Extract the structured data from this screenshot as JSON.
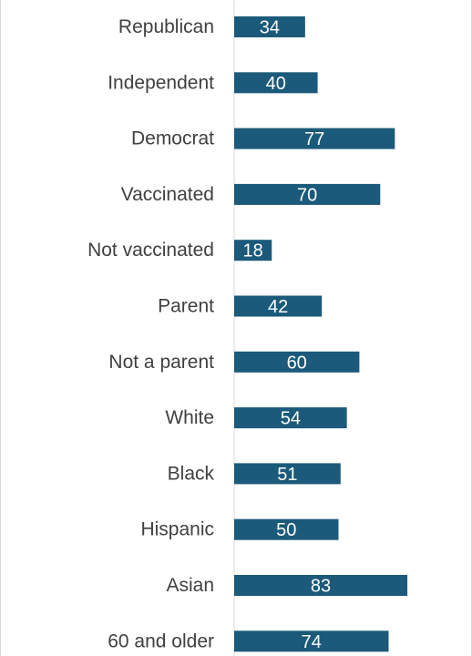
{
  "chart_data": {
    "type": "bar",
    "orientation": "horizontal",
    "categories": [
      "Republican",
      "Independent",
      "Democrat",
      "Vaccinated",
      "Not vaccinated",
      "Parent",
      "Not a parent",
      "White",
      "Black",
      "Hispanic",
      "Asian",
      "60 and older"
    ],
    "values": [
      34,
      40,
      77,
      70,
      18,
      42,
      60,
      54,
      51,
      50,
      83,
      74
    ],
    "xlim": [
      0,
      100
    ],
    "grid": false,
    "data_labels": true,
    "colors": {
      "bar": "#1b5a7a",
      "label_text": "#404040",
      "bar_label_text": "#ffffff",
      "axis_line": "#d9d9d9"
    }
  }
}
